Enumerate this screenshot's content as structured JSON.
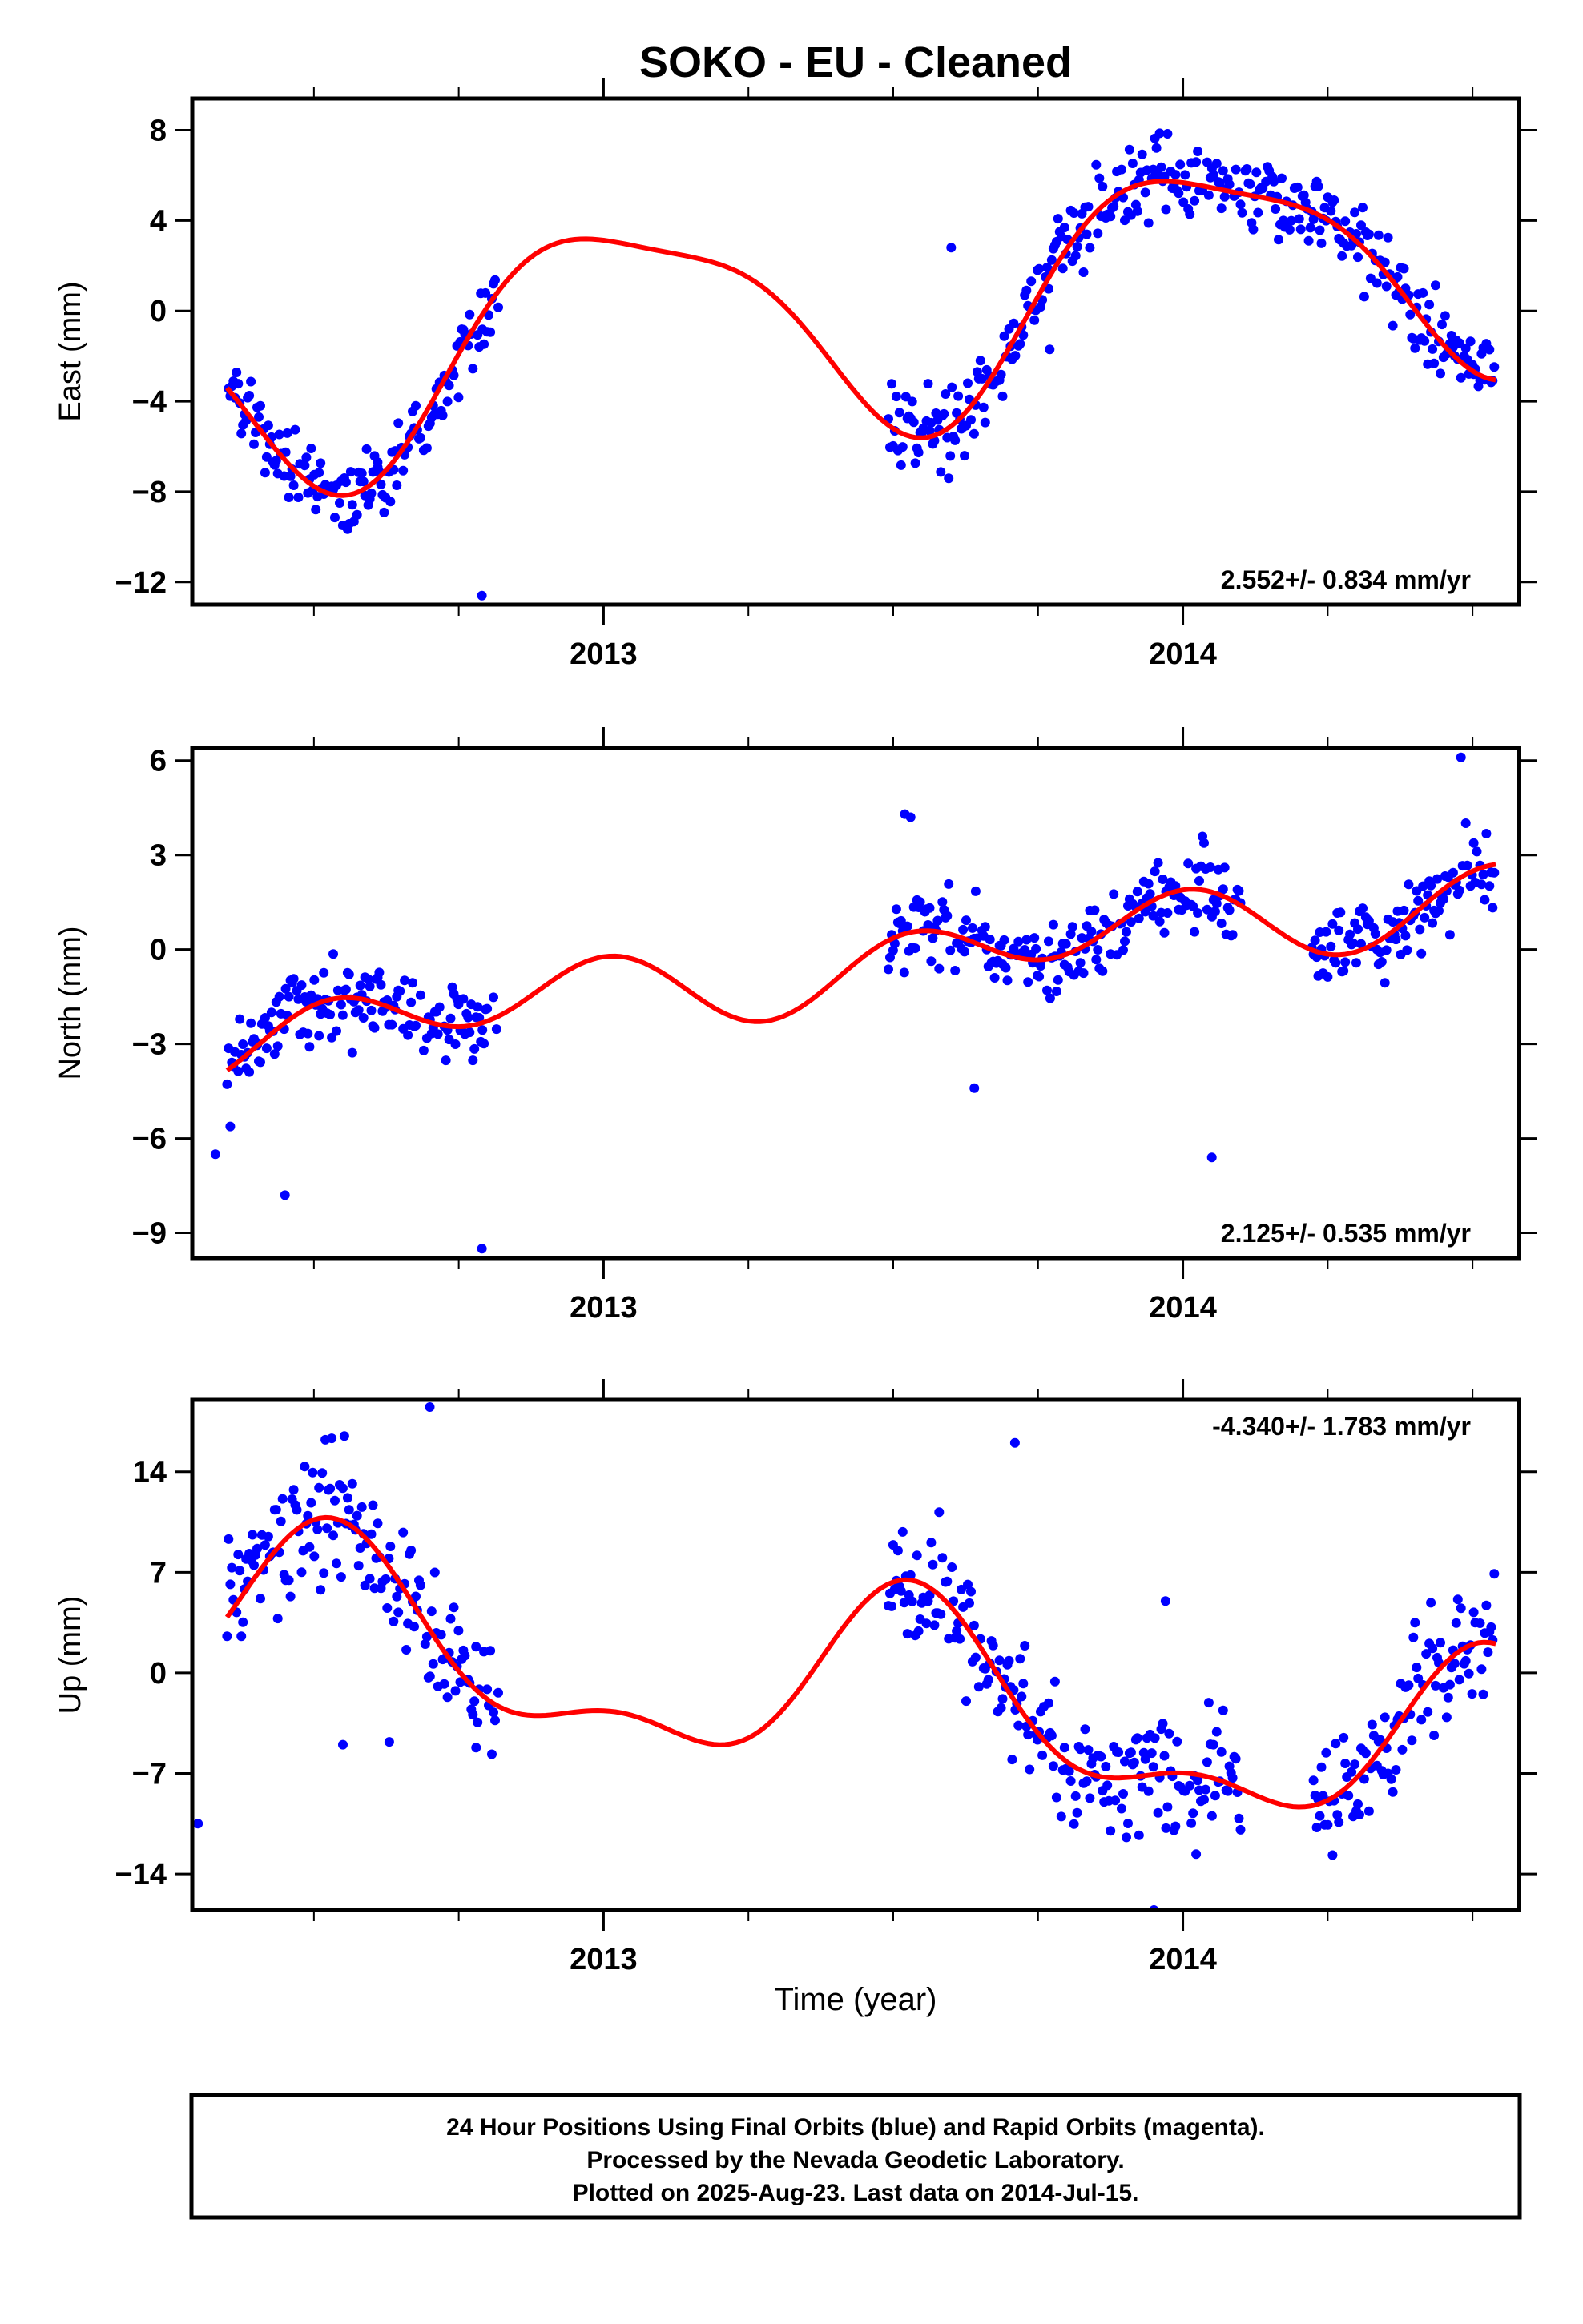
{
  "title": "SOKO  - EU - Cleaned",
  "x_axis_label": "Time (year)",
  "colors": {
    "final_orbits": "#0000ff",
    "rapid_orbits": "#ff00ff",
    "model": "#ff0000"
  },
  "footer": {
    "line1": "24 Hour Positions Using Final Orbits (blue) and Rapid Orbits (magenta).",
    "line2": "Processed by the Nevada Geodetic Laboratory.",
    "line3": "Plotted on 2025-Aug-23. Last data on 2014-Jul-15."
  },
  "chart_data": [
    {
      "type": "scatter",
      "panel": "east",
      "ylabel": "East (mm)",
      "rate_label": "2.552+/- 0.834 mm/yr",
      "rate_position": "bottom-right",
      "xlim": [
        2012.29,
        2014.58
      ],
      "ylim": [
        -13,
        9.4
      ],
      "yticks": [
        8,
        4,
        0,
        -4,
        -8,
        -12
      ],
      "xticks": [
        2013,
        2014
      ],
      "gaps": [
        [
          2012.82,
          2013.49
        ]
      ],
      "model": {
        "mean": 0.15,
        "trend": 2.552,
        "ref": 2013.43,
        "terms": [
          {
            "p": 1.0,
            "a": -3.0,
            "b": -3.9
          },
          {
            "p": 0.5,
            "a": -1.2,
            "b": 0.3
          }
        ]
      },
      "noise": 1.25,
      "outliers": [
        [
          2012.61,
          -6.7
        ],
        [
          2012.79,
          -12.6
        ],
        [
          2013.77,
          -1.7
        ],
        [
          2014.5,
          -2.4
        ],
        [
          2013.6,
          2.8
        ]
      ],
      "series": [
        {
          "name": "Final Orbits",
          "points": []
        },
        {
          "name": "Model",
          "points": []
        }
      ]
    },
    {
      "type": "scatter",
      "panel": "north",
      "ylabel": "North (mm)",
      "rate_label": "2.125+/- 0.535 mm/yr",
      "rate_position": "bottom-right",
      "xlim": [
        2012.29,
        2014.58
      ],
      "ylim": [
        -9.8,
        6.4
      ],
      "yticks": [
        6,
        3,
        0,
        -3,
        -6,
        -9
      ],
      "xticks": [
        2013,
        2014
      ],
      "gaps": [
        [
          2012.82,
          2013.49
        ],
        [
          2014.1,
          2014.22
        ]
      ],
      "model": {
        "mean": -0.5,
        "trend": 2.125,
        "ref": 2013.43,
        "terms": [
          {
            "p": 1.0,
            "a": 0.3,
            "b": -0.4
          },
          {
            "p": 0.5,
            "a": 0.9,
            "b": 0.4
          }
        ]
      },
      "noise": 0.95,
      "outliers": [
        [
          2012.33,
          -6.5
        ],
        [
          2012.45,
          -7.8
        ],
        [
          2012.79,
          -9.5
        ],
        [
          2013.64,
          -4.4
        ],
        [
          2014.05,
          -6.6
        ],
        [
          2013.52,
          4.3
        ],
        [
          2013.53,
          4.2
        ],
        [
          2014.48,
          6.1
        ]
      ],
      "series": [
        {
          "name": "Final Orbits",
          "points": []
        },
        {
          "name": "Model",
          "points": []
        }
      ]
    },
    {
      "type": "scatter",
      "panel": "up",
      "ylabel": "Up (mm)",
      "rate_label": "-4.340+/- 1.783 mm/yr",
      "rate_position": "top-right",
      "xlim": [
        2012.29,
        2014.58
      ],
      "ylim": [
        -16.5,
        19
      ],
      "yticks": [
        14,
        7,
        0,
        -7,
        -14
      ],
      "xticks": [
        2013,
        2014
      ],
      "gaps": [
        [
          2012.82,
          2013.49
        ],
        [
          2014.1,
          2014.22
        ]
      ],
      "model": {
        "mean": -1.5,
        "trend": -4.34,
        "ref": 2013.43,
        "terms": [
          {
            "p": 1.0,
            "a": 3.5,
            "b": 4.5
          },
          {
            "p": 0.5,
            "a": 2.5,
            "b": 1.0
          }
        ]
      },
      "noise": 3.0,
      "outliers": [
        [
          2012.3,
          -10.5
        ],
        [
          2012.55,
          -5.0
        ],
        [
          2012.63,
          -4.8
        ],
        [
          2012.7,
          18.5
        ],
        [
          2013.71,
          16.0
        ],
        [
          2013.95,
          -16.5
        ],
        [
          2013.97,
          5.0
        ],
        [
          2012.78,
          -5.2
        ]
      ],
      "series": [
        {
          "name": "Final Orbits",
          "points": []
        },
        {
          "name": "Model",
          "points": []
        }
      ]
    }
  ]
}
